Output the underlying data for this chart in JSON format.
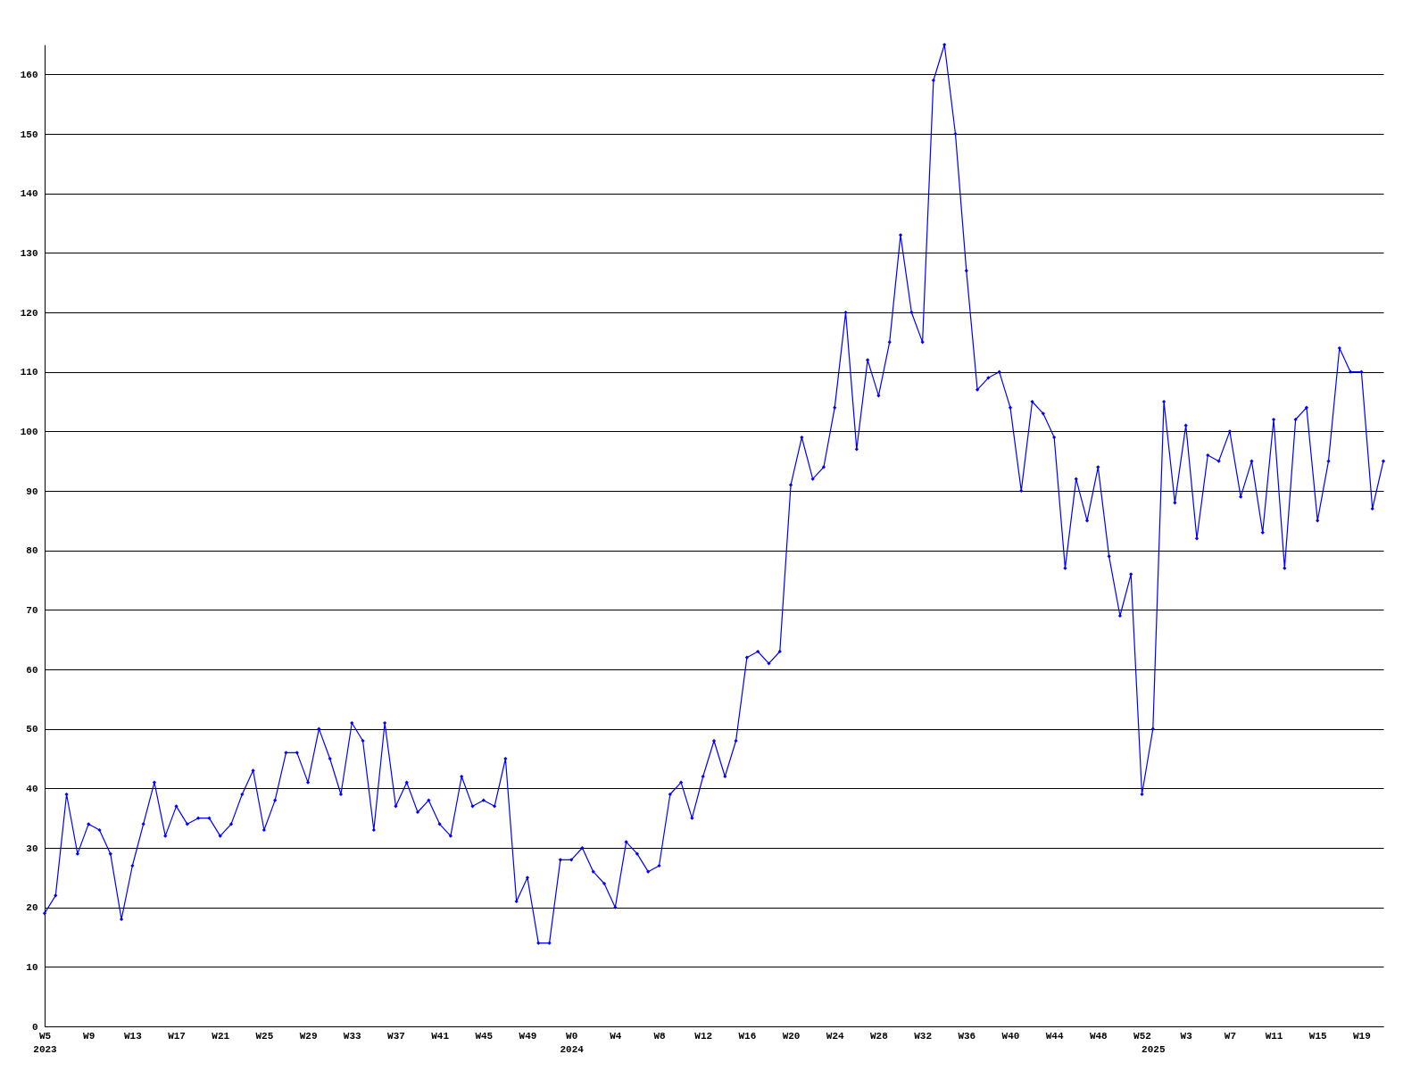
{
  "chart_data": {
    "type": "line",
    "categories": [
      "W5\n2023",
      null,
      null,
      null,
      "W9",
      null,
      null,
      null,
      "W13",
      null,
      null,
      null,
      "W17",
      null,
      null,
      null,
      "W21",
      null,
      null,
      null,
      "W25",
      null,
      null,
      null,
      "W29",
      null,
      null,
      null,
      "W33",
      null,
      null,
      null,
      "W37",
      null,
      null,
      null,
      "W41",
      null,
      null,
      null,
      "W45",
      null,
      null,
      null,
      "W49",
      null,
      null,
      null,
      "W0\n2024",
      null,
      null,
      null,
      "W4",
      null,
      null,
      null,
      "W8",
      null,
      null,
      null,
      "W12",
      null,
      null,
      null,
      "W16",
      null,
      null,
      null,
      "W20",
      null,
      null,
      null,
      "W24",
      null,
      null,
      null,
      "W28",
      null,
      null,
      null,
      "W32",
      null,
      null,
      null,
      "W36",
      null,
      null,
      null,
      "W40",
      null,
      null,
      null,
      "W44",
      null,
      null,
      null,
      "W48",
      null,
      null,
      null,
      "W52",
      "\n2025",
      null,
      null,
      "W3",
      null,
      null,
      null,
      "W7",
      null,
      null,
      null,
      "W11",
      null,
      null,
      null,
      "W15",
      null,
      null,
      null,
      "W19",
      null,
      null
    ],
    "series": [
      {
        "color": "#0000ff",
        "values": [
          19,
          22,
          39,
          29,
          34,
          33,
          29,
          18,
          27,
          34,
          41,
          32,
          37,
          34,
          35,
          35,
          32,
          34,
          39,
          43,
          33,
          38,
          46,
          46,
          41,
          50,
          45,
          39,
          51,
          48,
          33,
          51,
          37,
          41,
          36,
          38,
          34,
          32,
          42,
          37,
          38,
          37,
          45,
          21,
          25,
          14,
          14,
          28,
          28,
          30,
          26,
          24,
          20,
          31,
          29,
          26,
          27,
          39,
          41,
          35,
          42,
          48,
          42,
          48,
          62,
          63,
          61,
          63,
          91,
          99,
          92,
          94,
          104,
          120,
          97,
          112,
          106,
          115,
          133,
          120,
          115,
          159,
          165,
          150,
          127,
          107,
          109,
          110,
          104,
          90,
          105,
          103,
          99,
          77,
          92,
          85,
          94,
          79,
          69,
          76,
          39,
          50,
          105,
          88,
          101,
          82,
          96,
          95,
          100,
          89,
          95,
          83,
          102,
          77,
          102,
          104,
          85,
          95,
          114,
          110,
          110,
          87,
          95
        ]
      }
    ],
    "ylim": [
      0,
      165
    ],
    "yticks": [
      0,
      10,
      20,
      30,
      40,
      50,
      60,
      70,
      80,
      90,
      100,
      110,
      120,
      130,
      140,
      150,
      160
    ],
    "grid": "y",
    "marker": "diamond",
    "line_style": "solid"
  }
}
